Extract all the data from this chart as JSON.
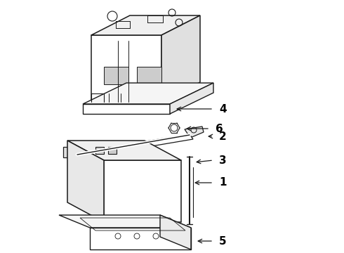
{
  "background_color": "#ffffff",
  "line_color": "#1a1a1a",
  "label_color": "#000000",
  "figsize": [
    4.9,
    3.6
  ],
  "dpi": 100,
  "label_fontsize": 10
}
